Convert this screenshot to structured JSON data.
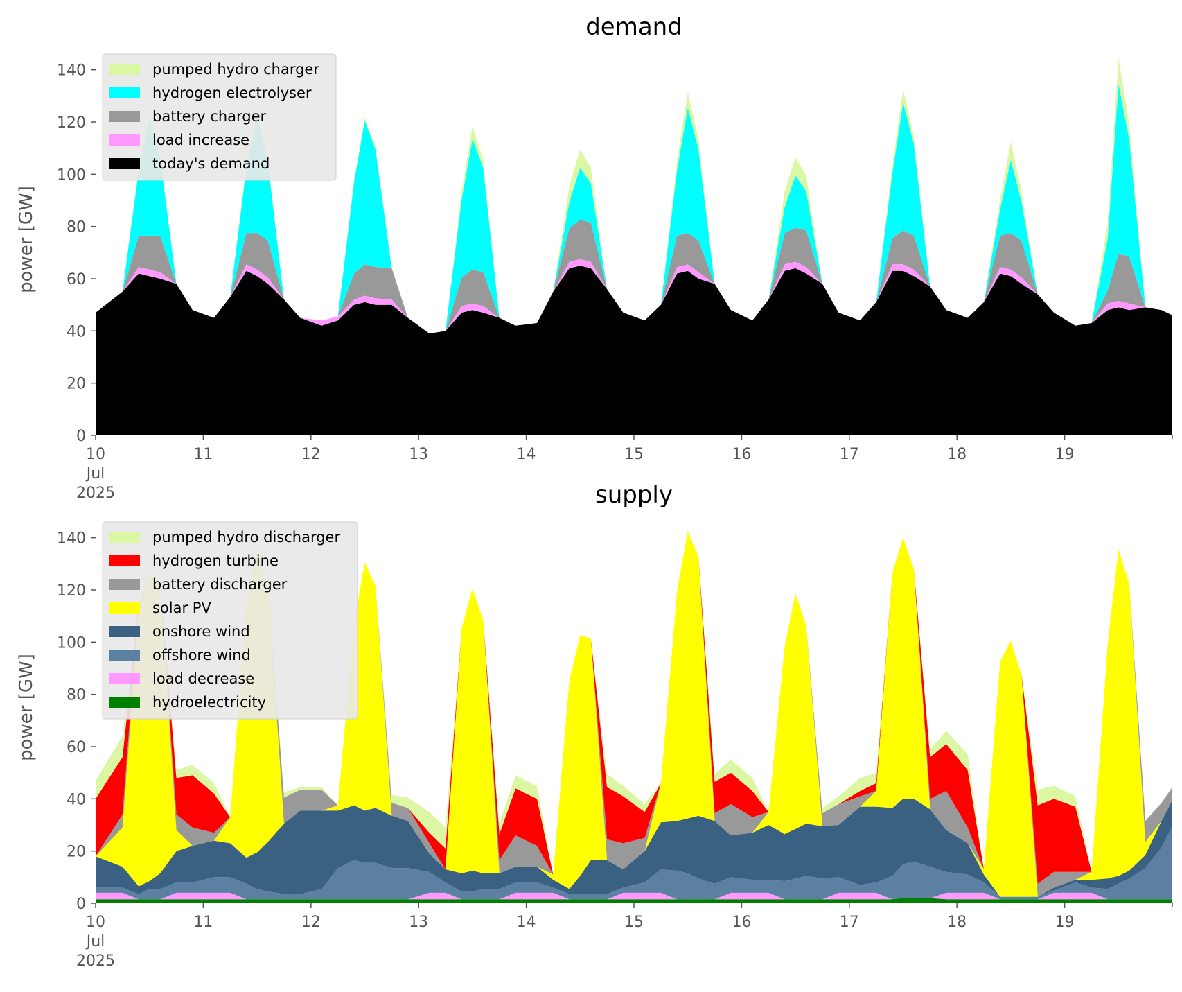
{
  "chart_data": [
    {
      "type": "area",
      "title": "demand",
      "ylabel": "power [GW]",
      "ylim": [
        0,
        150
      ],
      "yticks": [
        0,
        20,
        40,
        60,
        80,
        100,
        120,
        140
      ],
      "xlim_days": [
        "10",
        "20"
      ],
      "x_tick_labels": [
        "10",
        "11",
        "12",
        "13",
        "14",
        "15",
        "16",
        "17",
        "18",
        "19"
      ],
      "x_tick_sublabels": [
        "Jul",
        "2025"
      ],
      "legend_position": "top-left",
      "x": [
        10.0,
        10.25,
        10.4,
        10.5,
        10.6,
        10.75,
        10.9,
        11.1,
        11.25,
        11.4,
        11.5,
        11.6,
        11.75,
        11.9,
        12.1,
        12.25,
        12.4,
        12.5,
        12.6,
        12.75,
        12.9,
        13.1,
        13.25,
        13.4,
        13.5,
        13.6,
        13.75,
        13.9,
        14.1,
        14.25,
        14.4,
        14.5,
        14.6,
        14.75,
        14.9,
        15.1,
        15.25,
        15.4,
        15.5,
        15.6,
        15.75,
        15.9,
        16.1,
        16.25,
        16.4,
        16.5,
        16.6,
        16.75,
        16.9,
        17.1,
        17.25,
        17.4,
        17.5,
        17.6,
        17.75,
        17.9,
        18.1,
        18.25,
        18.4,
        18.5,
        18.6,
        18.75,
        18.9,
        19.1,
        19.25,
        19.4,
        19.5,
        19.6,
        19.75,
        19.9,
        20.0
      ],
      "series": [
        {
          "name": "today's demand",
          "color": "#000000",
          "values": [
            47,
            55,
            62,
            61,
            60,
            58,
            48,
            45,
            53,
            63,
            61,
            58,
            52,
            45,
            42,
            44,
            50,
            51,
            50,
            50,
            45,
            39,
            40,
            47,
            48,
            47,
            45,
            42,
            43,
            55,
            64,
            65,
            64,
            56,
            47,
            44,
            50,
            62,
            63,
            60,
            58,
            48,
            44,
            52,
            63,
            64,
            62,
            58,
            47,
            44,
            51,
            63,
            63,
            61,
            57,
            48,
            45,
            51,
            62,
            61,
            58,
            54,
            47,
            42,
            43,
            48,
            49,
            48,
            49,
            48,
            46
          ]
        },
        {
          "name": "load increase",
          "color": "#ff99ff",
          "values": [
            0,
            0,
            2.5,
            2.5,
            2.5,
            0,
            0,
            0,
            0,
            2.5,
            2.5,
            2.5,
            0,
            0,
            2,
            1.5,
            2,
            2.5,
            2.5,
            2,
            0,
            0,
            0,
            2.5,
            2.5,
            2.5,
            0,
            0,
            0,
            0,
            2.5,
            2.5,
            2.5,
            0,
            0,
            0,
            0,
            2.5,
            2.5,
            2.5,
            0,
            0,
            0,
            0,
            2.5,
            2.5,
            2.5,
            0,
            0,
            0,
            0,
            2.5,
            2.5,
            2.5,
            0,
            0,
            0,
            0,
            2.5,
            2.5,
            2.5,
            0,
            0,
            0,
            0,
            2.5,
            2.5,
            2.5,
            0,
            0,
            0
          ]
        },
        {
          "name": "battery charger",
          "color": "#999999",
          "values": [
            0,
            0,
            12,
            13,
            14,
            0,
            0,
            0,
            0,
            12,
            14,
            14,
            0,
            0,
            0,
            0,
            10,
            12,
            12,
            12,
            0,
            0,
            0,
            11,
            13,
            13,
            0,
            0,
            0,
            0,
            13,
            15,
            15,
            0,
            0,
            0,
            0,
            12,
            12,
            12,
            0,
            0,
            0,
            0,
            12,
            13,
            14,
            0,
            0,
            0,
            0,
            10,
            13,
            13,
            0,
            0,
            0,
            0,
            12,
            14,
            14,
            0,
            0,
            0,
            0,
            5,
            18,
            18,
            0,
            0,
            0
          ]
        },
        {
          "name": "hydrogen electrolyser",
          "color": "#00ffff",
          "values": [
            0,
            0,
            25,
            45,
            30,
            0,
            0,
            0,
            0,
            25,
            45,
            30,
            0,
            0,
            0,
            0,
            35,
            55,
            45,
            0,
            0,
            0,
            0,
            30,
            50,
            40,
            0,
            0,
            0,
            0,
            10,
            20,
            15,
            0,
            0,
            0,
            0,
            25,
            48,
            35,
            0,
            0,
            0,
            0,
            10,
            20,
            15,
            0,
            0,
            0,
            0,
            25,
            49,
            35,
            0,
            0,
            0,
            0,
            10,
            28,
            15,
            0,
            0,
            0,
            0,
            20,
            65,
            45,
            0,
            0,
            0
          ]
        },
        {
          "name": "pumped hydro charger",
          "color": "#dbf7a4",
          "values": [
            0,
            0,
            1,
            1,
            1,
            0,
            0,
            0,
            0,
            1,
            1,
            1,
            0,
            0,
            0,
            0,
            1,
            1,
            1,
            0,
            0,
            0,
            0,
            3,
            5,
            3,
            0,
            0,
            0,
            0,
            6,
            7,
            6,
            0,
            0,
            0,
            0,
            4,
            6,
            4,
            0,
            0,
            0,
            0,
            6,
            7,
            6,
            0,
            0,
            0,
            0,
            3,
            5,
            3,
            0,
            0,
            0,
            0,
            4,
            7,
            4,
            0,
            0,
            0,
            0,
            6,
            10,
            6,
            0,
            0,
            0
          ]
        }
      ],
      "legend_order": [
        "pumped hydro charger",
        "hydrogen electrolyser",
        "battery charger",
        "load increase",
        "today's demand"
      ]
    },
    {
      "type": "area",
      "title": "supply",
      "ylabel": "power [GW]",
      "ylim": [
        0,
        150
      ],
      "yticks": [
        0,
        20,
        40,
        60,
        80,
        100,
        120,
        140
      ],
      "xlim_days": [
        "10",
        "20"
      ],
      "x_tick_labels": [
        "10",
        "11",
        "12",
        "13",
        "14",
        "15",
        "16",
        "17",
        "18",
        "19"
      ],
      "x_tick_sublabels": [
        "Jul",
        "2025"
      ],
      "legend_position": "top-left",
      "x": [
        10.0,
        10.25,
        10.4,
        10.5,
        10.6,
        10.75,
        10.9,
        11.1,
        11.25,
        11.4,
        11.5,
        11.6,
        11.75,
        11.9,
        12.1,
        12.25,
        12.4,
        12.5,
        12.6,
        12.75,
        12.9,
        13.1,
        13.25,
        13.4,
        13.5,
        13.6,
        13.75,
        13.9,
        14.1,
        14.25,
        14.4,
        14.5,
        14.6,
        14.75,
        14.9,
        15.1,
        15.25,
        15.4,
        15.5,
        15.6,
        15.75,
        15.9,
        16.1,
        16.25,
        16.4,
        16.5,
        16.6,
        16.75,
        16.9,
        17.1,
        17.25,
        17.4,
        17.5,
        17.6,
        17.75,
        17.9,
        18.1,
        18.25,
        18.4,
        18.5,
        18.6,
        18.75,
        18.9,
        19.1,
        19.25,
        19.4,
        19.5,
        19.6,
        19.75,
        19.9,
        20.0
      ],
      "series": [
        {
          "name": "hydroelectricity",
          "color": "#008000",
          "values": [
            1.5,
            1.5,
            1.5,
            1.5,
            1.5,
            1.5,
            1.5,
            1.5,
            1.5,
            1.5,
            1.5,
            1.5,
            1.5,
            1.5,
            1.5,
            1.5,
            1.5,
            1.5,
            1.5,
            1.5,
            1.5,
            1.5,
            1.5,
            1.5,
            1.5,
            1.5,
            1.5,
            1.5,
            1.5,
            1.5,
            1.5,
            1.5,
            1.5,
            1.5,
            1.5,
            1.5,
            1.5,
            1.5,
            1.5,
            1.5,
            1.5,
            1.5,
            1.5,
            1.5,
            1.5,
            1.5,
            1.5,
            1.5,
            1.5,
            1.5,
            1.5,
            1.5,
            2,
            2,
            2,
            1.5,
            1.5,
            1.5,
            1.5,
            1.5,
            1.5,
            1.5,
            1.5,
            1.5,
            1.5,
            1.5,
            1.5,
            1.5,
            1.5,
            1.5,
            1.5
          ]
        },
        {
          "name": "load decrease",
          "color": "#ff99ff",
          "values": [
            2.5,
            2.5,
            0,
            0,
            0,
            2.5,
            2.5,
            2.5,
            2.5,
            0,
            0,
            0,
            0,
            0,
            0,
            0,
            0,
            0,
            0,
            0,
            0,
            2.5,
            2.5,
            0,
            0,
            0,
            0,
            2.5,
            2.5,
            2.5,
            0,
            0,
            0,
            0,
            2.5,
            2.5,
            2.5,
            0,
            0,
            0,
            0,
            2.5,
            2.5,
            2.5,
            0,
            0,
            0,
            0,
            2.5,
            2.5,
            2.5,
            0,
            0,
            0,
            0,
            2.5,
            2.5,
            2.5,
            0,
            0,
            0,
            0,
            2.5,
            2.5,
            2.5,
            0,
            0,
            0,
            0,
            0,
            0
          ]
        },
        {
          "name": "offshore wind",
          "color": "#5b80a1",
          "values": [
            2,
            2,
            2,
            4,
            4,
            4,
            4,
            6,
            6,
            6,
            4,
            3,
            2,
            2,
            4,
            12,
            15,
            14,
            14,
            12,
            12,
            8,
            4,
            3,
            3,
            4,
            4,
            4,
            4,
            2,
            2,
            2,
            2,
            2,
            2,
            4,
            9,
            11,
            10,
            8,
            6,
            6,
            5,
            5,
            7,
            8,
            9,
            8,
            6,
            3,
            4,
            9,
            13,
            14,
            12,
            8,
            7,
            4,
            1,
            1,
            1,
            1,
            1,
            4,
            2,
            4,
            6,
            8,
            12,
            20,
            28
          ]
        },
        {
          "name": "onshore wind",
          "color": "#3a6181",
          "values": [
            12,
            8,
            3,
            3,
            6,
            12,
            14,
            14,
            13,
            10,
            14,
            19,
            27,
            32,
            30,
            22,
            21,
            20,
            21,
            20,
            18,
            7,
            5,
            7,
            8,
            6,
            6,
            6,
            6,
            3,
            2,
            7,
            13,
            13,
            7,
            12,
            18,
            19,
            21,
            24,
            24,
            16,
            18,
            21,
            18,
            19,
            20,
            20,
            20,
            30,
            29,
            26,
            25,
            24,
            22,
            16,
            12,
            3,
            0,
            0,
            0,
            0,
            1,
            1,
            3,
            4,
            3,
            3,
            5,
            10,
            10
          ]
        },
        {
          "name": "solar PV",
          "color": "#ffff00",
          "values": [
            0,
            15,
            105,
            118,
            110,
            8,
            0,
            0,
            10,
            98,
            115,
            98,
            0,
            0,
            0,
            2,
            70,
            95,
            85,
            0,
            0,
            0,
            0,
            94,
            108,
            97,
            0,
            0,
            0,
            2,
            80,
            92,
            85,
            0,
            0,
            0,
            15,
            88,
            110,
            99,
            0,
            0,
            0,
            5,
            72,
            90,
            76,
            0,
            0,
            0,
            6,
            90,
            100,
            88,
            0,
            0,
            0,
            2,
            90,
            98,
            85,
            0,
            0,
            0,
            3,
            90,
            125,
            110,
            5,
            0,
            0
          ]
        },
        {
          "name": "battery discharger",
          "color": "#999999",
          "values": [
            0,
            5,
            3,
            0,
            0,
            6,
            7,
            3,
            0,
            0,
            0,
            0,
            10,
            8,
            8,
            0,
            0,
            0,
            0,
            5,
            5,
            4,
            0,
            0,
            0,
            0,
            5,
            12,
            8,
            0,
            0,
            0,
            0,
            8,
            10,
            5,
            0,
            0,
            0,
            0,
            3,
            12,
            6,
            0,
            0,
            0,
            0,
            5,
            8,
            4,
            0,
            0,
            0,
            0,
            4,
            15,
            6,
            0,
            0,
            0,
            0,
            5,
            6,
            3,
            0,
            0,
            0,
            0,
            8,
            7,
            5
          ]
        },
        {
          "name": "hydrogen turbine",
          "color": "#ff0000",
          "values": [
            22,
            22,
            0,
            0,
            0,
            14,
            20,
            15,
            0,
            0,
            0,
            0,
            0,
            0,
            0,
            0,
            0,
            0,
            0,
            0,
            0,
            4,
            8,
            0,
            0,
            0,
            10,
            18,
            18,
            0,
            0,
            0,
            0,
            20,
            18,
            10,
            0,
            0,
            0,
            0,
            12,
            12,
            10,
            0,
            0,
            0,
            0,
            0,
            0,
            2,
            3,
            0,
            0,
            0,
            16,
            18,
            22,
            0,
            0,
            0,
            0,
            30,
            28,
            25,
            0,
            0,
            0,
            0,
            0,
            0,
            0
          ]
        },
        {
          "name": "pumped hydro discharger",
          "color": "#dbf7a4",
          "values": [
            7,
            8,
            0,
            0,
            0,
            3,
            4,
            4,
            0,
            0,
            0,
            0,
            2,
            1,
            1,
            0,
            0,
            0,
            0,
            3,
            4,
            8,
            8,
            0,
            0,
            0,
            4,
            5,
            5,
            0,
            0,
            0,
            0,
            5,
            4,
            3,
            0,
            0,
            0,
            0,
            3,
            5,
            5,
            0,
            0,
            0,
            0,
            2,
            3,
            5,
            4,
            0,
            0,
            0,
            3,
            5,
            6,
            0,
            0,
            0,
            0,
            6,
            5,
            4,
            0,
            0,
            0,
            0,
            0,
            0,
            0
          ]
        }
      ],
      "legend_order": [
        "pumped hydro discharger",
        "hydrogen turbine",
        "battery discharger",
        "solar PV",
        "onshore wind",
        "offshore wind",
        "load decrease",
        "hydroelectricity"
      ]
    }
  ]
}
